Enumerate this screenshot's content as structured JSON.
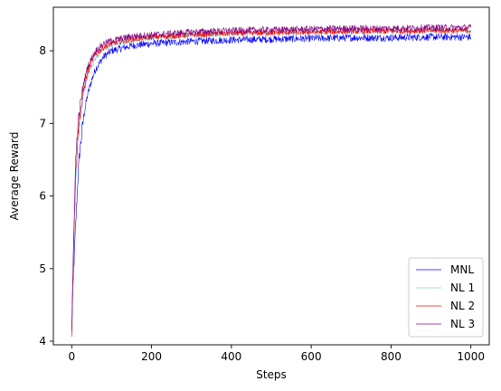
{
  "chart_data": {
    "type": "line",
    "title": "",
    "xlabel": "Steps",
    "ylabel": "Average Reward",
    "xlim": [
      -46,
      1046
    ],
    "ylim": [
      3.95,
      8.6
    ],
    "xticks": [
      0,
      200,
      400,
      600,
      800,
      1000
    ],
    "yticks": [
      4,
      5,
      6,
      7,
      8
    ],
    "grid": false,
    "legend_position": "lower-right",
    "series": [
      {
        "name": "MNL",
        "color": "#0000ff",
        "x": [
          0,
          5,
          10,
          15,
          20,
          30,
          40,
          50,
          60,
          80,
          100,
          150,
          200,
          300,
          400,
          500,
          600,
          700,
          800,
          900,
          1000
        ],
        "y": [
          4.15,
          5.0,
          5.6,
          6.2,
          6.6,
          7.1,
          7.4,
          7.6,
          7.75,
          7.92,
          8.0,
          8.07,
          8.1,
          8.13,
          8.15,
          8.16,
          8.17,
          8.18,
          8.18,
          8.19,
          8.19
        ],
        "noise": 0.05
      },
      {
        "name": "NL 1",
        "color": "#87cfcf",
        "x": [
          0,
          5,
          10,
          15,
          20,
          30,
          40,
          50,
          60,
          80,
          100,
          150,
          200,
          300,
          400,
          500,
          600,
          700,
          800,
          900,
          1000
        ],
        "y": [
          4.1,
          5.3,
          6.2,
          6.7,
          7.0,
          7.4,
          7.65,
          7.8,
          7.9,
          8.02,
          8.08,
          8.15,
          8.18,
          8.22,
          8.24,
          8.25,
          8.26,
          8.27,
          8.27,
          8.28,
          8.28
        ],
        "noise": 0.04
      },
      {
        "name": "NL 2",
        "color": "#ff0000",
        "x": [
          0,
          5,
          10,
          15,
          20,
          30,
          40,
          50,
          60,
          80,
          100,
          150,
          200,
          300,
          400,
          500,
          600,
          700,
          800,
          900,
          1000
        ],
        "y": [
          4.1,
          5.4,
          6.3,
          6.8,
          7.1,
          7.45,
          7.7,
          7.85,
          7.95,
          8.05,
          8.1,
          8.16,
          8.19,
          8.22,
          8.24,
          8.25,
          8.26,
          8.27,
          8.27,
          8.28,
          8.28
        ],
        "noise": 0.04
      },
      {
        "name": "NL 3",
        "color": "#800080",
        "x": [
          0,
          5,
          10,
          15,
          20,
          30,
          40,
          50,
          60,
          80,
          100,
          150,
          200,
          300,
          400,
          500,
          600,
          700,
          800,
          900,
          1000
        ],
        "y": [
          4.1,
          5.5,
          6.5,
          6.95,
          7.2,
          7.55,
          7.78,
          7.9,
          8.0,
          8.1,
          8.14,
          8.2,
          8.22,
          8.26,
          8.28,
          8.29,
          8.3,
          8.31,
          8.31,
          8.32,
          8.32
        ],
        "noise": 0.045
      }
    ]
  }
}
